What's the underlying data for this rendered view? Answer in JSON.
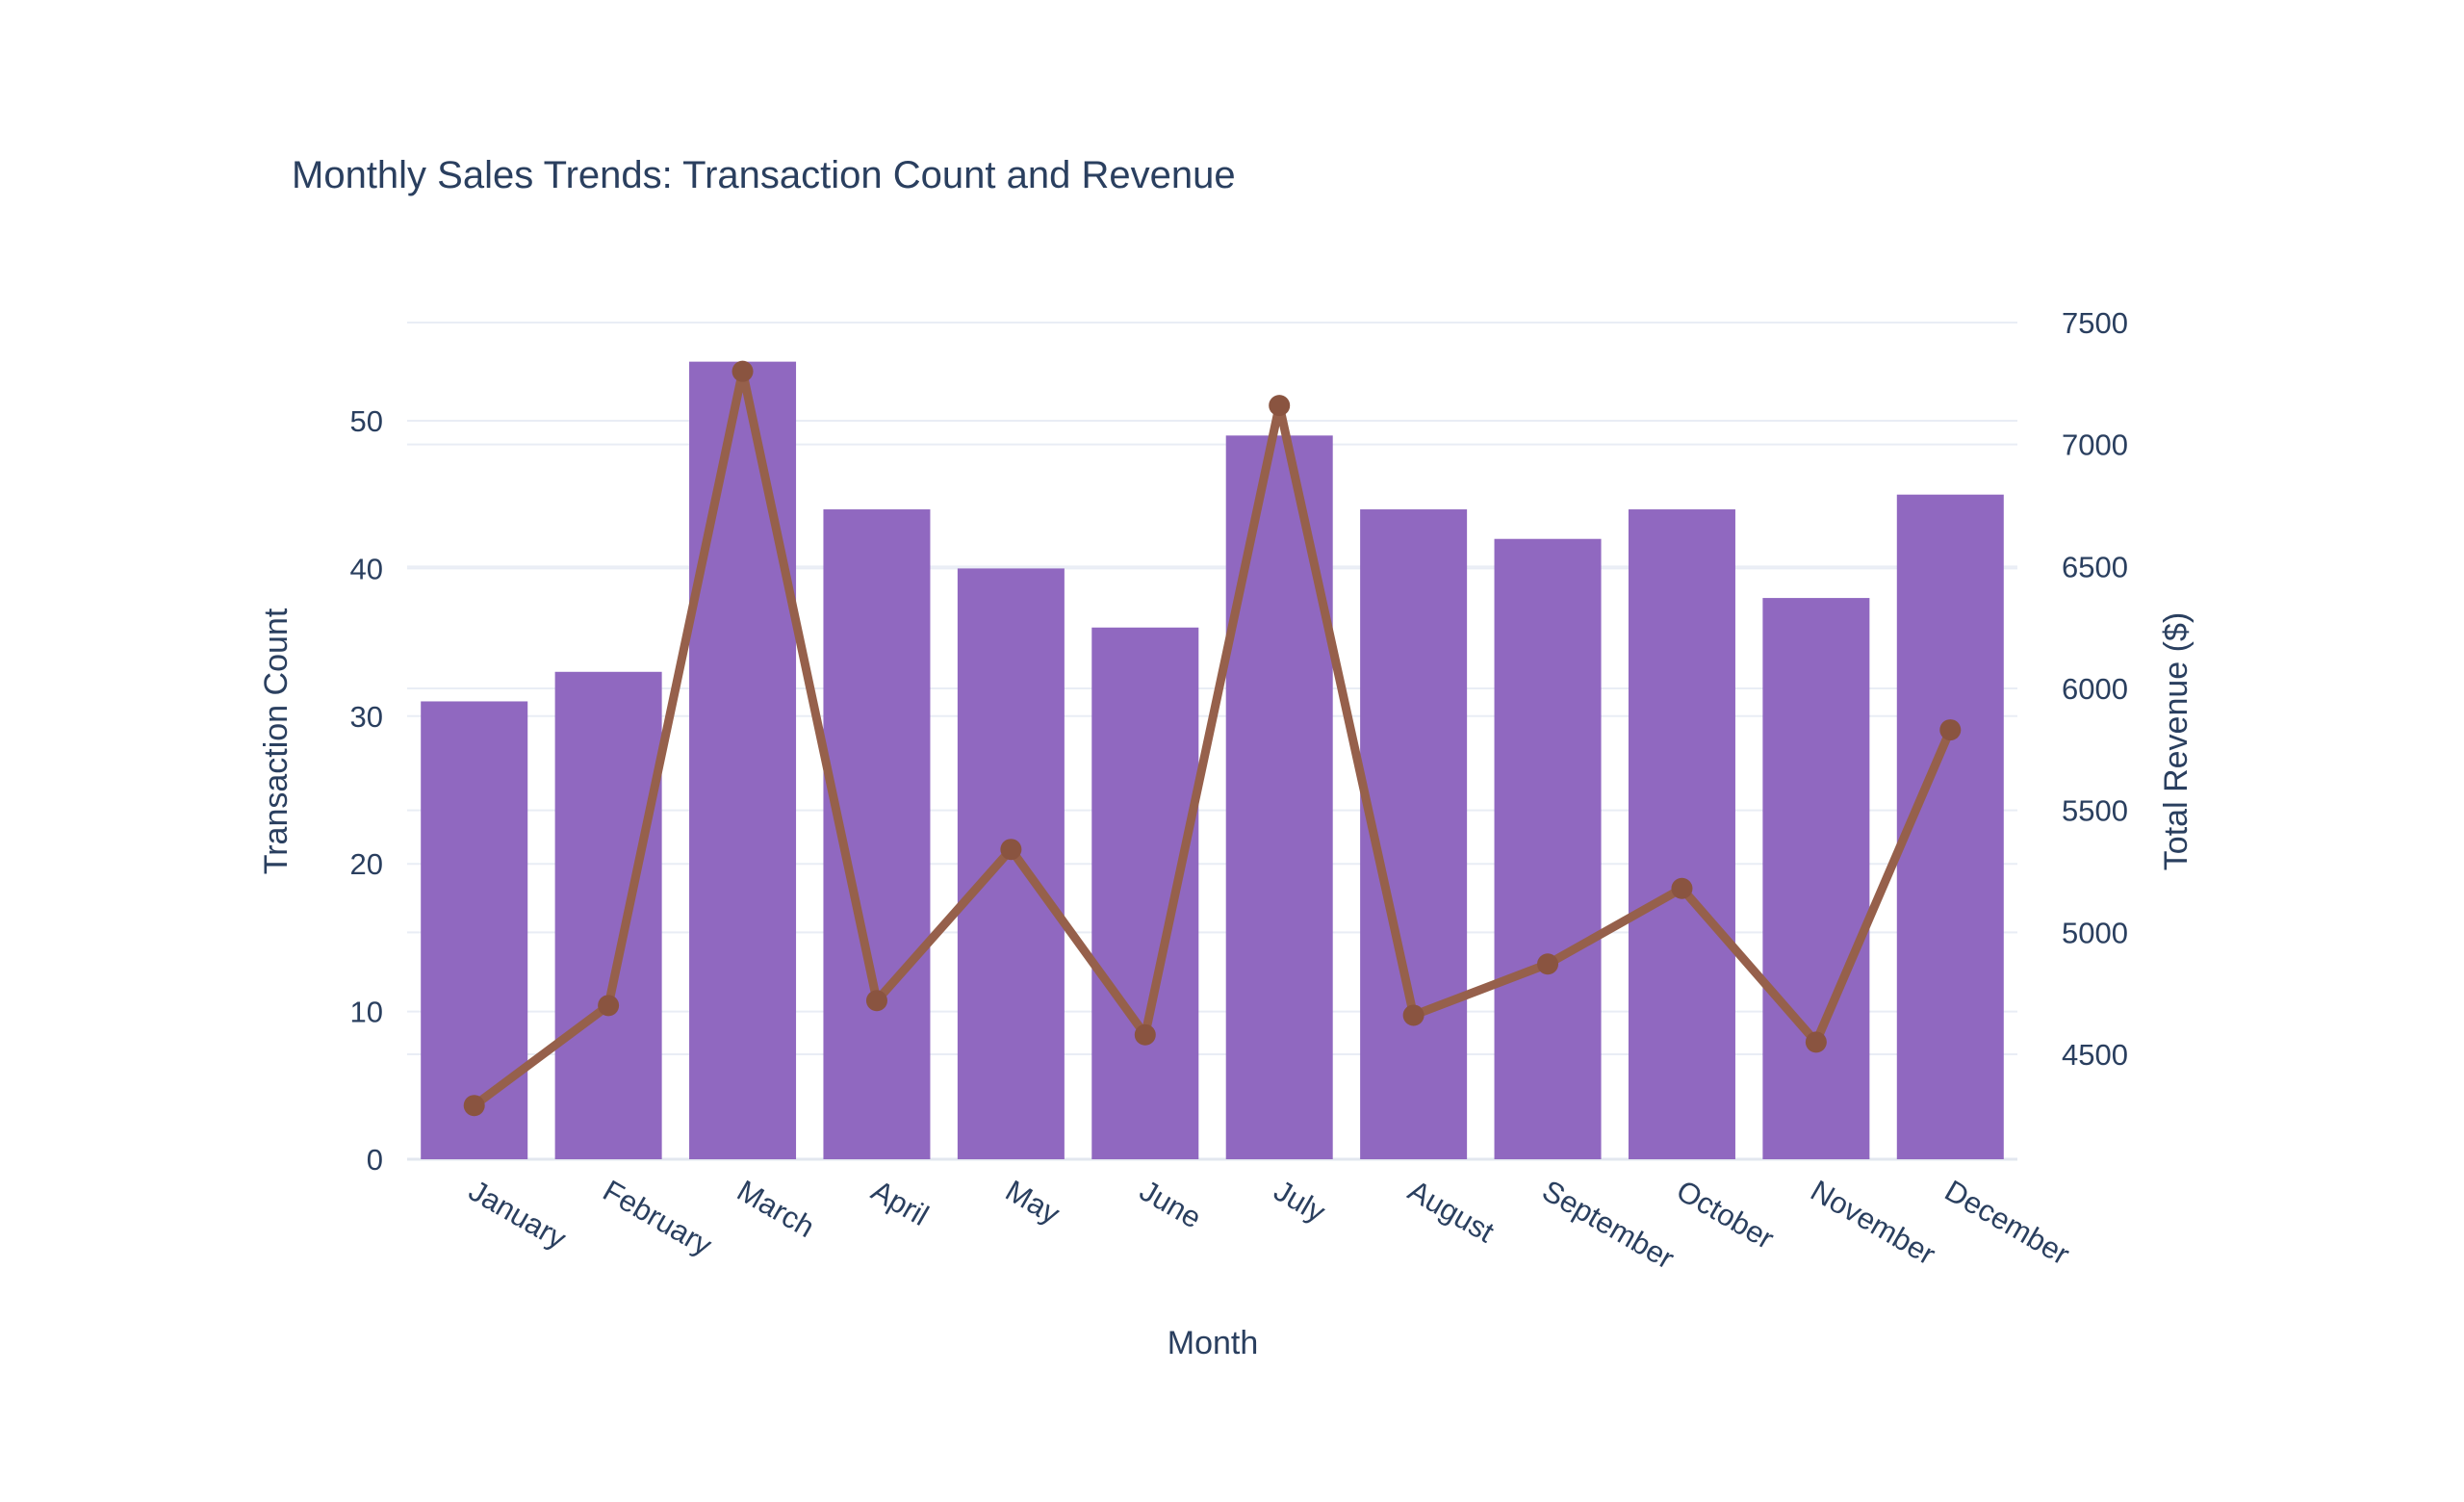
{
  "chart_data": {
    "type": "bar",
    "subtype": "bar+line dual-axis combo",
    "title": "Monthly Sales Trends: Transaction Count and Revenue",
    "xlabel": "Month",
    "categories": [
      "January",
      "February",
      "March",
      "April",
      "May",
      "June",
      "July",
      "August",
      "September",
      "October",
      "November",
      "December"
    ],
    "series": [
      {
        "name": "Transaction Count",
        "type": "bar",
        "axis": "left",
        "color": "#9068c0",
        "values": [
          31,
          33,
          54,
          44,
          40,
          36,
          49,
          44,
          42,
          44,
          38,
          45
        ]
      },
      {
        "name": "Total Revenue ($)",
        "type": "line",
        "axis": "right",
        "color": "#96604b",
        "marker_color": "#8a5440",
        "values": [
          4290,
          4700,
          7300,
          4720,
          5340,
          4580,
          7160,
          4660,
          4870,
          5180,
          4550,
          5830
        ]
      }
    ],
    "y_left": {
      "label": "Transaction Count",
      "ticks": [
        0,
        10,
        20,
        30,
        40,
        50
      ],
      "range": [
        0,
        60
      ]
    },
    "y_right": {
      "label": "Total Revenue ($)",
      "ticks": [
        4500,
        5000,
        5500,
        6000,
        6500,
        7000,
        7500
      ],
      "range": [
        4070,
        7680
      ]
    },
    "grid": true,
    "legend_position": "none",
    "x_tick_angle_deg": 30,
    "text_color": "#2a3f5f",
    "gridline_color": "#e9edf5",
    "axisline_color": "#e2e7ef",
    "background_color": "#ffffff"
  }
}
